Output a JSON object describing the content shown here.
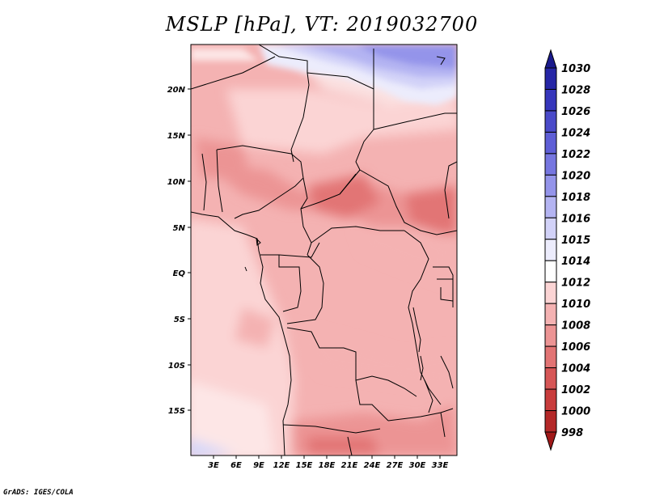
{
  "title": "MSLP [hPa], VT: 2019032700",
  "footer": "GrADS: IGES/COLA",
  "map": {
    "lon_range": [
      0,
      35
    ],
    "lat_range": [
      -20,
      25
    ],
    "x_ticks": [
      "3E",
      "6E",
      "9E",
      "12E",
      "15E",
      "18E",
      "21E",
      "24E",
      "27E",
      "30E",
      "33E"
    ],
    "y_ticks": [
      "20N",
      "15N",
      "10N",
      "5N",
      "EQ",
      "5S",
      "10S",
      "15S"
    ]
  },
  "colorbar": {
    "labels": [
      "1030",
      "1028",
      "1026",
      "1024",
      "1022",
      "1020",
      "1018",
      "1016",
      "1015",
      "1014",
      "1012",
      "1010",
      "1008",
      "1006",
      "1004",
      "1002",
      "1000",
      "998"
    ],
    "colors": [
      "#1a1a8c",
      "#2626a6",
      "#3636bb",
      "#4a4ac9",
      "#5e5ed6",
      "#7676e0",
      "#9494ea",
      "#b4b4f2",
      "#d2d2f8",
      "#ececfc",
      "#ffffff",
      "#fbd4d4",
      "#f4b2b2",
      "#ec9494",
      "#e27474",
      "#d65656",
      "#c83c3c",
      "#b42828",
      "#a01818"
    ]
  }
}
